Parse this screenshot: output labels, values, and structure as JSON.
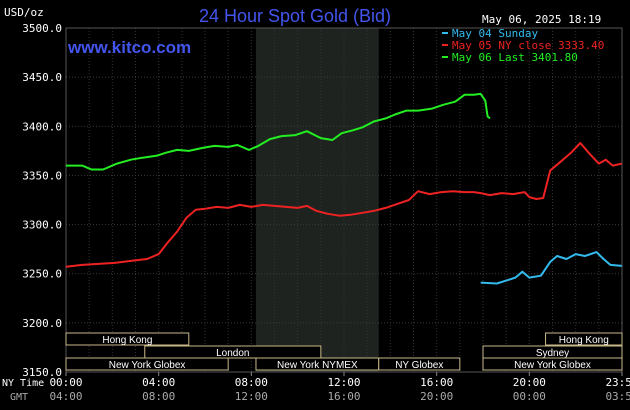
{
  "chart_data": {
    "type": "line",
    "title": "24 Hour Spot Gold (Bid)",
    "units": "USD/oz",
    "source": "www.kitco.com",
    "timestamp": "May 06, 2025 18:19",
    "ylim": [
      3150,
      3500
    ],
    "y_ticks": [
      "3500.0",
      "3450.0",
      "3400.0",
      "3350.0",
      "3300.0",
      "3250.0",
      "3200.0",
      "3150.0"
    ],
    "x_ticks_ny": [
      "00:00",
      "04:00",
      "08:00",
      "12:00",
      "16:00",
      "20:00",
      "23:59"
    ],
    "x_ticks_gmt": [
      "04:00",
      "08:00",
      "12:00",
      "16:00",
      "20:00",
      "00:00",
      "03:59"
    ],
    "x_row_labels": {
      "ny": "NY Time",
      "gmt": "GMT"
    },
    "x_range_hours": [
      0,
      24
    ],
    "grid": true,
    "legend_position": "top-right",
    "highlight_band_hours": [
      8.2,
      13.5
    ],
    "sessions": [
      {
        "name": "Hong Kong",
        "start": 0,
        "end": 5.3,
        "row": 0
      },
      {
        "name": "London",
        "start": 3.4,
        "end": 11,
        "row": 1
      },
      {
        "name": "New York Globex",
        "start": 0,
        "end": 7,
        "row": 2
      },
      {
        "name": "New York NYMEX",
        "start": 8.2,
        "end": 13.5,
        "row": 2
      },
      {
        "name": "NY Globex",
        "start": 13.5,
        "end": 17,
        "row": 2
      },
      {
        "name": "Hong Kong",
        "start": 20.7,
        "end": 24,
        "row": 0
      },
      {
        "name": "Sydney",
        "start": 18,
        "end": 24,
        "row": 1
      },
      {
        "name": "New York Globex",
        "start": 18,
        "end": 24,
        "row": 2
      }
    ],
    "series": [
      {
        "name": "May 04 Sunday",
        "color": "#33bbee",
        "points": [
          [
            17.9,
            3241
          ],
          [
            18.6,
            3240
          ],
          [
            19.0,
            3243
          ],
          [
            19.4,
            3246
          ],
          [
            19.7,
            3252
          ],
          [
            20.0,
            3246
          ],
          [
            20.5,
            3248
          ],
          [
            20.9,
            3262
          ],
          [
            21.2,
            3268
          ],
          [
            21.6,
            3265
          ],
          [
            22.0,
            3270
          ],
          [
            22.4,
            3268
          ],
          [
            22.9,
            3272
          ],
          [
            23.2,
            3265
          ],
          [
            23.5,
            3259
          ],
          [
            23.99,
            3258
          ]
        ]
      },
      {
        "name": "May 05 NY close 3333.40",
        "color": "#ee2222",
        "points": [
          [
            0,
            3257
          ],
          [
            0.7,
            3259
          ],
          [
            1.4,
            3260
          ],
          [
            2.1,
            3261
          ],
          [
            2.8,
            3263
          ],
          [
            3.5,
            3265
          ],
          [
            4.0,
            3270
          ],
          [
            4.4,
            3282
          ],
          [
            4.8,
            3293
          ],
          [
            5.2,
            3307
          ],
          [
            5.6,
            3315
          ],
          [
            6.0,
            3316
          ],
          [
            6.5,
            3318
          ],
          [
            7.0,
            3317
          ],
          [
            7.5,
            3320
          ],
          [
            8.0,
            3318
          ],
          [
            8.5,
            3320
          ],
          [
            9.0,
            3319
          ],
          [
            9.5,
            3318
          ],
          [
            10.0,
            3317
          ],
          [
            10.4,
            3319
          ],
          [
            10.8,
            3314
          ],
          [
            11.3,
            3311
          ],
          [
            11.8,
            3309
          ],
          [
            12.3,
            3310
          ],
          [
            12.8,
            3312
          ],
          [
            13.3,
            3314
          ],
          [
            13.8,
            3317
          ],
          [
            14.3,
            3321
          ],
          [
            14.8,
            3325
          ],
          [
            15.2,
            3334
          ],
          [
            15.7,
            3331
          ],
          [
            16.2,
            3333
          ],
          [
            16.7,
            3334
          ],
          [
            17.2,
            3333
          ],
          [
            17.6,
            3333
          ],
          [
            17.9,
            3332
          ],
          [
            18.3,
            3330
          ],
          [
            18.8,
            3332
          ],
          [
            19.3,
            3331
          ],
          [
            19.8,
            3333
          ],
          [
            20.0,
            3328
          ],
          [
            20.3,
            3326
          ],
          [
            20.6,
            3327
          ],
          [
            20.9,
            3355
          ],
          [
            21.3,
            3363
          ],
          [
            21.8,
            3373
          ],
          [
            22.2,
            3383
          ],
          [
            22.6,
            3372
          ],
          [
            23.0,
            3362
          ],
          [
            23.3,
            3366
          ],
          [
            23.6,
            3360
          ],
          [
            23.99,
            3362
          ]
        ]
      },
      {
        "name": "May 06 Last 3401.80",
        "color": "#22ee22",
        "points": [
          [
            0,
            3360
          ],
          [
            0.7,
            3360
          ],
          [
            1.1,
            3356
          ],
          [
            1.6,
            3356
          ],
          [
            2.2,
            3362
          ],
          [
            2.8,
            3366
          ],
          [
            3.3,
            3368
          ],
          [
            3.9,
            3370
          ],
          [
            4.3,
            3373
          ],
          [
            4.8,
            3376
          ],
          [
            5.3,
            3375
          ],
          [
            5.9,
            3378
          ],
          [
            6.4,
            3380
          ],
          [
            7.0,
            3379
          ],
          [
            7.4,
            3381
          ],
          [
            7.9,
            3376
          ],
          [
            8.3,
            3380
          ],
          [
            8.8,
            3387
          ],
          [
            9.3,
            3390
          ],
          [
            9.9,
            3391
          ],
          [
            10.4,
            3395
          ],
          [
            11.0,
            3388
          ],
          [
            11.5,
            3386
          ],
          [
            11.9,
            3393
          ],
          [
            12.4,
            3396
          ],
          [
            12.8,
            3399
          ],
          [
            13.3,
            3405
          ],
          [
            13.8,
            3408
          ],
          [
            14.2,
            3412
          ],
          [
            14.7,
            3416
          ],
          [
            15.2,
            3416
          ],
          [
            15.8,
            3418
          ],
          [
            16.3,
            3422
          ],
          [
            16.8,
            3425
          ],
          [
            17.2,
            3432
          ],
          [
            17.6,
            3432
          ],
          [
            17.9,
            3433
          ],
          [
            18.1,
            3426
          ],
          [
            18.2,
            3410
          ],
          [
            18.3,
            3408
          ]
        ]
      }
    ]
  }
}
